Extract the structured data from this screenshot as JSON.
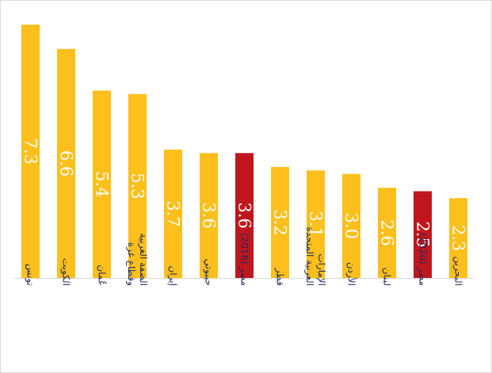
{
  "chart_data": {
    "type": "bar",
    "title": "",
    "xlabel": "",
    "ylabel": "",
    "ylim": [
      0,
      7.6
    ],
    "grid": false,
    "legend": "none",
    "value_labels_rotated": true,
    "colors": {
      "default": "#fdbf1c",
      "highlight": "#c0161d",
      "axis": "#d9d9d9",
      "label": "#1f2a5c"
    },
    "categories": [
      {
        "label": [
          "تونس"
        ],
        "value": 7.3,
        "display": "7.3",
        "highlight": false
      },
      {
        "label": [
          "الكويت"
        ],
        "value": 6.6,
        "display": "6.6",
        "highlight": false
      },
      {
        "label": [
          "عُمان"
        ],
        "value": 5.4,
        "display": "5.4",
        "highlight": false
      },
      {
        "label": [
          "الضفة الغربية",
          "وقطاع غزة"
        ],
        "value": 5.3,
        "display": "5.3",
        "highlight": false
      },
      {
        "label": [
          "إيران"
        ],
        "value": 3.7,
        "display": "3.7",
        "highlight": false
      },
      {
        "label": [
          "جيبوتي"
        ],
        "value": 3.6,
        "display": "3.6",
        "highlight": false
      },
      {
        "label": [
          "مصر (2016)"
        ],
        "value": 3.6,
        "display": "3.6",
        "highlight": true
      },
      {
        "label": [
          "قطر"
        ],
        "value": 3.2,
        "display": "3.2",
        "highlight": false
      },
      {
        "label": [
          "الإمارات",
          "العربية المتحدة"
        ],
        "value": 3.1,
        "display": "3.1",
        "highlight": false
      },
      {
        "label": [
          "الأردن"
        ],
        "value": 3.0,
        "display": "3.0",
        "highlight": false
      },
      {
        "label": [
          "لبنان"
        ],
        "value": 2.6,
        "display": "2.6",
        "highlight": false
      },
      {
        "label": [
          "مصر (2020)"
        ],
        "value": 2.5,
        "display": "2.5",
        "highlight": true
      },
      {
        "label": [
          "البحرين"
        ],
        "value": 2.3,
        "display": "2.3",
        "highlight": false
      }
    ]
  }
}
